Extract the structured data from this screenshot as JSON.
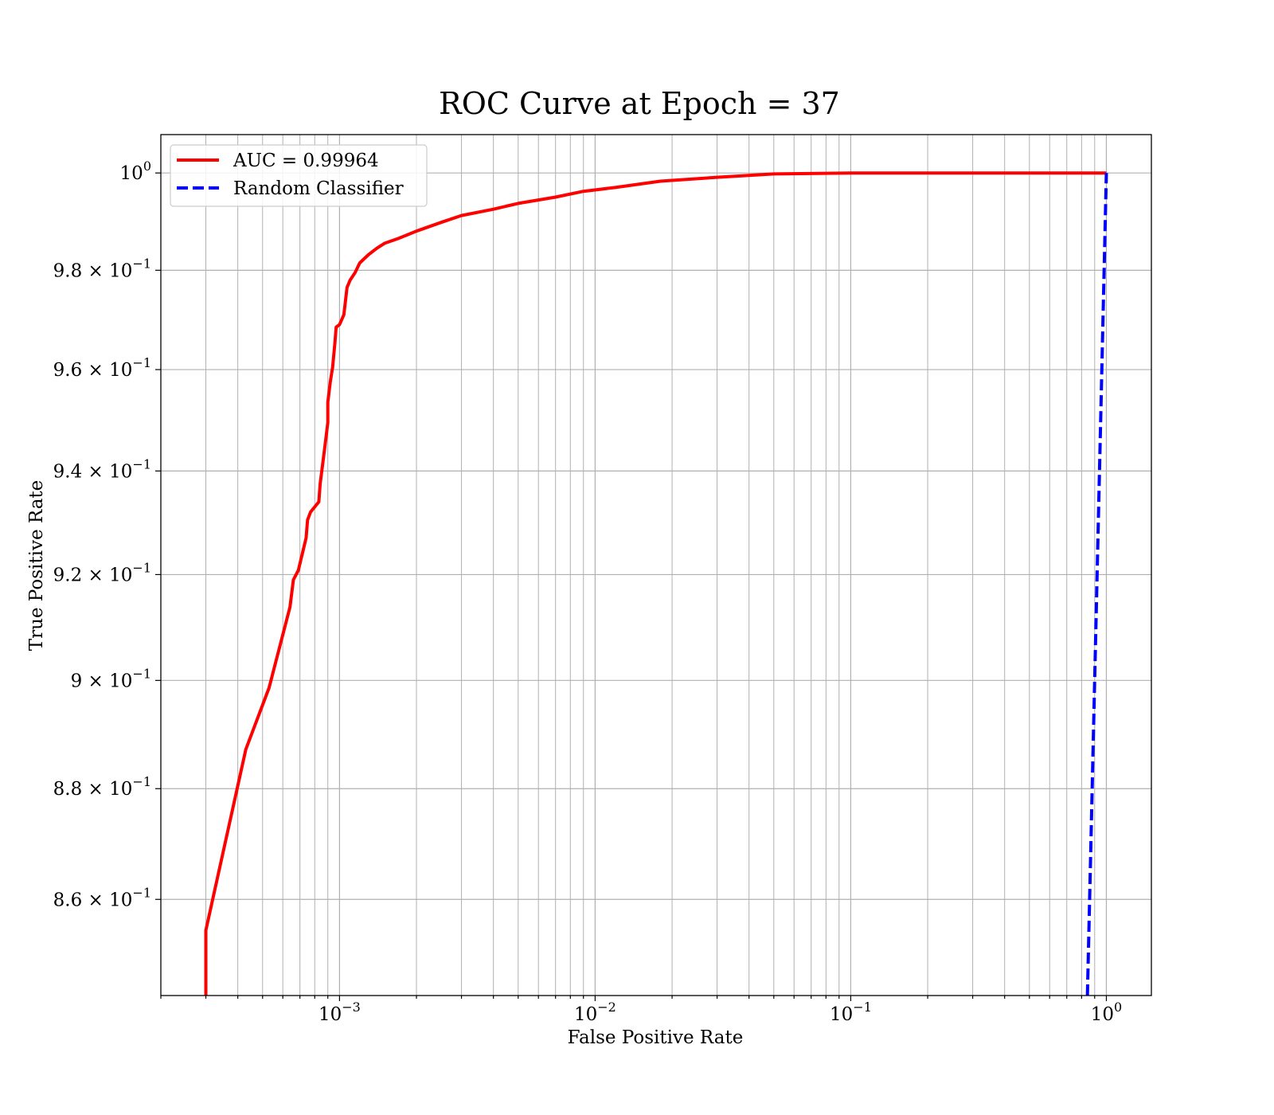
{
  "chart_data": {
    "type": "line",
    "title": "ROC Curve at Epoch = 37",
    "xlabel": "False Positive Rate",
    "ylabel": "True Positive Rate",
    "xscale": "log",
    "yscale": "log",
    "xlim": [
      0.0002,
      1.5
    ],
    "ylim": [
      0.843,
      1.008
    ],
    "grid": true,
    "grid_minor": true,
    "legend_position": "top-left",
    "x_ticks": [
      {
        "value": 0.001,
        "base": "10",
        "exp": "−3"
      },
      {
        "value": 0.01,
        "base": "10",
        "exp": "−2"
      },
      {
        "value": 0.1,
        "base": "10",
        "exp": "−1"
      },
      {
        "value": 1,
        "base": "10",
        "exp": "0"
      }
    ],
    "y_ticks": [
      {
        "value": 1.0,
        "mant": "",
        "base": "10",
        "exp": "0"
      },
      {
        "value": 0.98,
        "mant": "9.8 × ",
        "base": "10",
        "exp": "−1"
      },
      {
        "value": 0.96,
        "mant": "9.6 × ",
        "base": "10",
        "exp": "−1"
      },
      {
        "value": 0.94,
        "mant": "9.4 × ",
        "base": "10",
        "exp": "−1"
      },
      {
        "value": 0.92,
        "mant": "9.2 × ",
        "base": "10",
        "exp": "−1"
      },
      {
        "value": 0.9,
        "mant": "9 × ",
        "base": "10",
        "exp": "−1"
      },
      {
        "value": 0.88,
        "mant": "8.8 × ",
        "base": "10",
        "exp": "−1"
      },
      {
        "value": 0.86,
        "mant": "8.6 × ",
        "base": "10",
        "exp": "−1"
      }
    ],
    "series": [
      {
        "name": "AUC = 0.99964",
        "color": "#ff0000",
        "style": "solid",
        "points": [
          [
            0.0003,
            0.843
          ],
          [
            0.0003,
            0.8545
          ],
          [
            0.00043,
            0.8872
          ],
          [
            0.00053,
            0.8986
          ],
          [
            0.00064,
            0.9138
          ],
          [
            0.00066,
            0.919
          ],
          [
            0.00069,
            0.9208
          ],
          [
            0.00074,
            0.927
          ],
          [
            0.00075,
            0.9305
          ],
          [
            0.00077,
            0.932
          ],
          [
            0.00083,
            0.934
          ],
          [
            0.00084,
            0.9375
          ],
          [
            0.00086,
            0.9415
          ],
          [
            0.00088,
            0.9455
          ],
          [
            0.0009,
            0.9495
          ],
          [
            0.0009,
            0.9535
          ],
          [
            0.00092,
            0.9575
          ],
          [
            0.00094,
            0.9605
          ],
          [
            0.00096,
            0.9655
          ],
          [
            0.00097,
            0.9685
          ],
          [
            0.001,
            0.969
          ],
          [
            0.00104,
            0.971
          ],
          [
            0.00107,
            0.9765
          ],
          [
            0.0011,
            0.978
          ],
          [
            0.00115,
            0.9795
          ],
          [
            0.0012,
            0.9815
          ],
          [
            0.0013,
            0.9832
          ],
          [
            0.0014,
            0.9845
          ],
          [
            0.0015,
            0.9855
          ],
          [
            0.0017,
            0.9865
          ],
          [
            0.002,
            0.988
          ],
          [
            0.0025,
            0.9898
          ],
          [
            0.003,
            0.9912
          ],
          [
            0.004,
            0.9925
          ],
          [
            0.005,
            0.9937
          ],
          [
            0.007,
            0.995
          ],
          [
            0.009,
            0.9962
          ],
          [
            0.012,
            0.997
          ],
          [
            0.018,
            0.9983
          ],
          [
            0.03,
            0.9991
          ],
          [
            0.05,
            0.9998
          ],
          [
            0.1,
            1.0
          ],
          [
            1.0,
            1.0
          ]
        ]
      },
      {
        "name": "Random Classifier",
        "color": "#0000ff",
        "style": "dashed",
        "points": [
          [
            0.843,
            0.843
          ],
          [
            1.0,
            1.0
          ]
        ]
      }
    ]
  }
}
